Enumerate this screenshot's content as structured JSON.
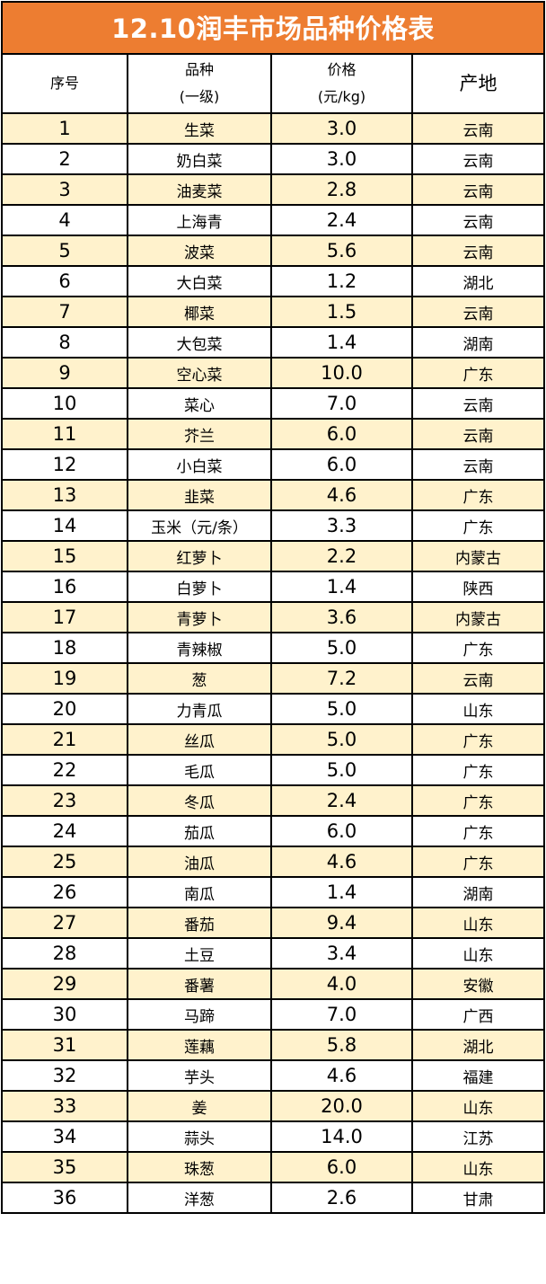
{
  "title": "12.10润丰市场品种价格表",
  "colors": {
    "title_bg": "#ED7D31",
    "alt_row_bg": "#FFF2CC"
  },
  "headers": {
    "no": "序号",
    "name_line1": "品种",
    "name_line2": "(一级)",
    "price_line1": "价格",
    "price_line2": "(元/kg)",
    "origin": "产地"
  },
  "rows": [
    {
      "no": "1",
      "name": "生菜",
      "price": "3.0",
      "origin": "云南"
    },
    {
      "no": "2",
      "name": "奶白菜",
      "price": "3.0",
      "origin": "云南"
    },
    {
      "no": "3",
      "name": "油麦菜",
      "price": "2.8",
      "origin": "云南"
    },
    {
      "no": "4",
      "name": "上海青",
      "price": "2.4",
      "origin": "云南"
    },
    {
      "no": "5",
      "name": "波菜",
      "price": "5.6",
      "origin": "云南"
    },
    {
      "no": "6",
      "name": "大白菜",
      "price": "1.2",
      "origin": "湖北"
    },
    {
      "no": "7",
      "name": "椰菜",
      "price": "1.5",
      "origin": "云南"
    },
    {
      "no": "8",
      "name": "大包菜",
      "price": "1.4",
      "origin": "湖南"
    },
    {
      "no": "9",
      "name": "空心菜",
      "price": "10.0",
      "origin": "广东"
    },
    {
      "no": "10",
      "name": "菜心",
      "price": "7.0",
      "origin": "云南"
    },
    {
      "no": "11",
      "name": "芥兰",
      "price": "6.0",
      "origin": "云南"
    },
    {
      "no": "12",
      "name": "小白菜",
      "price": "6.0",
      "origin": "云南"
    },
    {
      "no": "13",
      "name": "韭菜",
      "price": "4.6",
      "origin": "广东"
    },
    {
      "no": "14",
      "name": "玉米（元/条）",
      "price": "3.3",
      "origin": "广东"
    },
    {
      "no": "15",
      "name": "红萝卜",
      "price": "2.2",
      "origin": "内蒙古"
    },
    {
      "no": "16",
      "name": "白萝卜",
      "price": "1.4",
      "origin": "陕西"
    },
    {
      "no": "17",
      "name": "青萝卜",
      "price": "3.6",
      "origin": "内蒙古"
    },
    {
      "no": "18",
      "name": "青辣椒",
      "price": "5.0",
      "origin": "广东"
    },
    {
      "no": "19",
      "name": "葱",
      "price": "7.2",
      "origin": "云南"
    },
    {
      "no": "20",
      "name": "力青瓜",
      "price": "5.0",
      "origin": "山东"
    },
    {
      "no": "21",
      "name": "丝瓜",
      "price": "5.0",
      "origin": "广东"
    },
    {
      "no": "22",
      "name": "毛瓜",
      "price": "5.0",
      "origin": "广东"
    },
    {
      "no": "23",
      "name": "冬瓜",
      "price": "2.4",
      "origin": "广东"
    },
    {
      "no": "24",
      "name": "茄瓜",
      "price": "6.0",
      "origin": "广东"
    },
    {
      "no": "25",
      "name": "油瓜",
      "price": "4.6",
      "origin": "广东"
    },
    {
      "no": "26",
      "name": "南瓜",
      "price": "1.4",
      "origin": "湖南"
    },
    {
      "no": "27",
      "name": "番茄",
      "price": "9.4",
      "origin": "山东"
    },
    {
      "no": "28",
      "name": "土豆",
      "price": "3.4",
      "origin": "山东"
    },
    {
      "no": "29",
      "name": "番薯",
      "price": "4.0",
      "origin": "安徽"
    },
    {
      "no": "30",
      "name": "马蹄",
      "price": "7.0",
      "origin": "广西"
    },
    {
      "no": "31",
      "name": "莲藕",
      "price": "5.8",
      "origin": "湖北"
    },
    {
      "no": "32",
      "name": "芋头",
      "price": "4.6",
      "origin": "福建"
    },
    {
      "no": "33",
      "name": "姜",
      "price": "20.0",
      "origin": "山东"
    },
    {
      "no": "34",
      "name": "蒜头",
      "price": "14.0",
      "origin": "江苏"
    },
    {
      "no": "35",
      "name": "珠葱",
      "price": "6.0",
      "origin": "山东"
    },
    {
      "no": "36",
      "name": "洋葱",
      "price": "2.6",
      "origin": "甘肃"
    }
  ]
}
